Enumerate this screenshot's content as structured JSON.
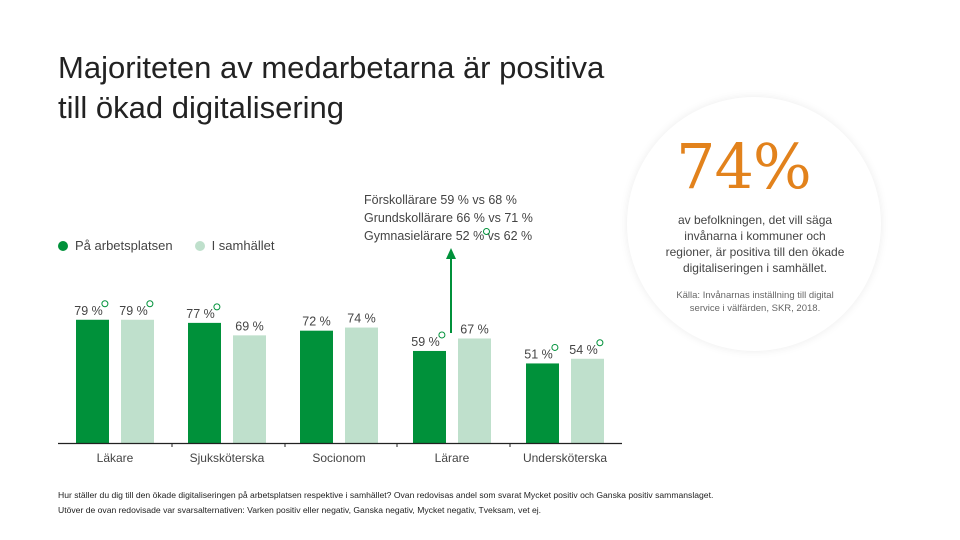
{
  "title_line1": "Majoriteten av medarbetarna är positiva",
  "title_line2": "till ökad digitalisering",
  "legend": [
    {
      "label": "På arbetsplatsen",
      "color": "#00913a"
    },
    {
      "label": "I samhället",
      "color": "#bfe0cc"
    }
  ],
  "note": {
    "line1": "Förskollärare 59 % vs 68 %",
    "line2": "Grundskollärare 66 % vs 71 %",
    "line3": "Gymnasielärare 52 % vs 62 %"
  },
  "callout": {
    "value": "74%",
    "text": "av befolkningen, det vill säga invånarna i kommuner och regioner, är positiva till den ökade digitaliseringen i samhället.",
    "source": "Källa: Invånarnas inställning till digital service i välfärden, SKR, 2018."
  },
  "footnote": {
    "line1": "Hur ställer du dig till den ökade digitaliseringen på arbetsplatsen respektive i samhället? Ovan redovisas andel som svarat Mycket positiv och Ganska positiv sammanslaget.",
    "line2": "Utöver de ovan redovisade var svarsalternativen: Varken positiv eller negativ, Ganska negativ, Mycket negativ, Tveksam, vet ej."
  },
  "colors": {
    "primary": "#00913a",
    "secondary": "#bfe0cc",
    "accent": "#e2821c"
  },
  "chart_data": {
    "type": "bar",
    "title": "Majoriteten av medarbetarna är positiva till ökad digitalisering",
    "categories": [
      "Läkare",
      "Sjuksköterska",
      "Socionom",
      "Lärare",
      "Undersköterska"
    ],
    "series": [
      {
        "name": "På arbetsplatsen",
        "values": [
          79,
          77,
          72,
          59,
          51
        ],
        "labels": [
          "79 %",
          "77 %",
          "72 %",
          "59 %",
          "51 %"
        ],
        "significant": [
          true,
          true,
          false,
          true,
          true
        ]
      },
      {
        "name": "I samhället",
        "values": [
          79,
          69,
          74,
          67,
          54
        ],
        "labels": [
          "79 %",
          "69 %",
          "74 %",
          "67 %",
          "54 %"
        ],
        "significant": [
          true,
          false,
          false,
          false,
          true
        ]
      }
    ],
    "ylim": [
      0,
      100
    ],
    "xlabel": "",
    "ylabel": "",
    "grid": false,
    "legend_position": "top-left"
  }
}
